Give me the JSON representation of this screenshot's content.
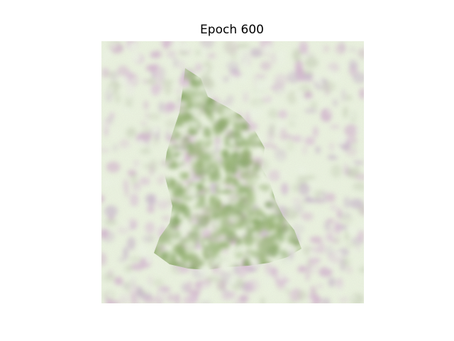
{
  "figure": {
    "title": "Epoch 600"
  },
  "image": {
    "background_color": "#ecf6e0",
    "blob_colors": [
      "#d9bcd6",
      "#cfa9cb",
      "#c5b3c9",
      "#c8d2b8"
    ],
    "shape_colors": [
      "#8fae68",
      "#7ea25a",
      "#9ab878",
      "#a7c08a"
    ],
    "highlight_color": "#eef7e6"
  }
}
